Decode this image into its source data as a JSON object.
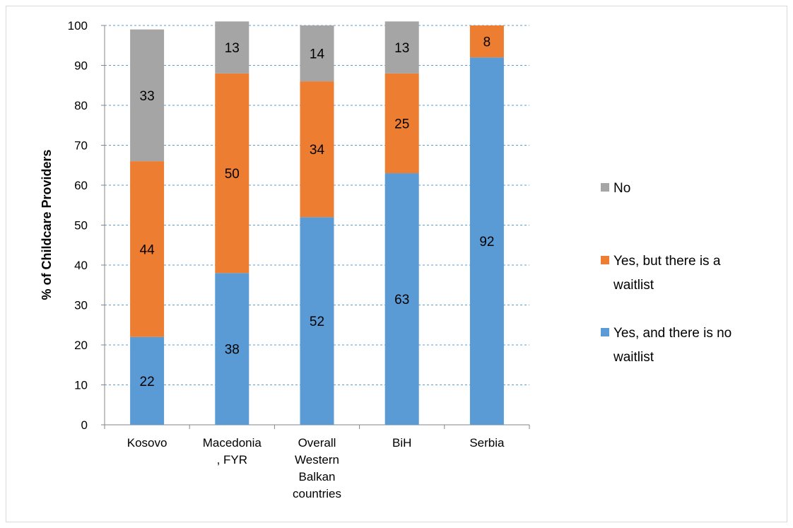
{
  "chart_data": {
    "type": "bar",
    "stacked": true,
    "categories": [
      "Kosovo",
      "Macedonia\n, FYR",
      "Overall\nWestern\nBalkan\ncountries",
      "BiH",
      "Serbia"
    ],
    "series": [
      {
        "name": "Yes, and there is no waitlist",
        "values": [
          22,
          38,
          52,
          63,
          92
        ],
        "color": "#5b9bd5"
      },
      {
        "name": "Yes, but there is a waitlist",
        "values": [
          44,
          50,
          34,
          25,
          8
        ],
        "color": "#ed7d31"
      },
      {
        "name": "No",
        "values": [
          33,
          13,
          14,
          13,
          null
        ],
        "color": "#a5a5a5"
      }
    ],
    "title": "",
    "xlabel": "",
    "ylabel": "% of Childcare Providers",
    "ylim": [
      0,
      100
    ],
    "yticks": [
      0,
      10,
      20,
      30,
      40,
      50,
      60,
      70,
      80,
      90,
      100
    ],
    "grid": true,
    "legend_position": "right",
    "legend_order": [
      "No",
      "Yes, but there is a waitlist",
      "Yes, and there is no waitlist"
    ]
  }
}
